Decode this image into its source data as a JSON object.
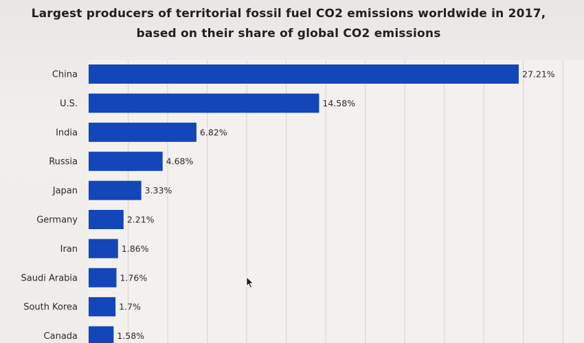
{
  "chart_data": {
    "type": "bar",
    "orientation": "horizontal",
    "title": "Largest producers of territorial fossil fuel CO2 emissions worldwide in 2017, based on their share of global CO2 emissions",
    "categories": [
      "China",
      "U.S.",
      "India",
      "Russia",
      "Japan",
      "Germany",
      "Iran",
      "Saudi Arabia",
      "South Korea",
      "Canada"
    ],
    "values": [
      27.21,
      14.58,
      6.82,
      4.68,
      3.33,
      2.21,
      1.86,
      1.76,
      1.7,
      1.58
    ],
    "value_labels": [
      "27.21%",
      "14.58%",
      "6.82%",
      "4.68%",
      "3.33%",
      "2.21%",
      "1.86%",
      "1.76%",
      "1.7%",
      "1.58%"
    ],
    "xlabel": "",
    "ylabel": "",
    "xlim": [
      0,
      30
    ],
    "grid": true,
    "bar_color": "#1346b8"
  }
}
